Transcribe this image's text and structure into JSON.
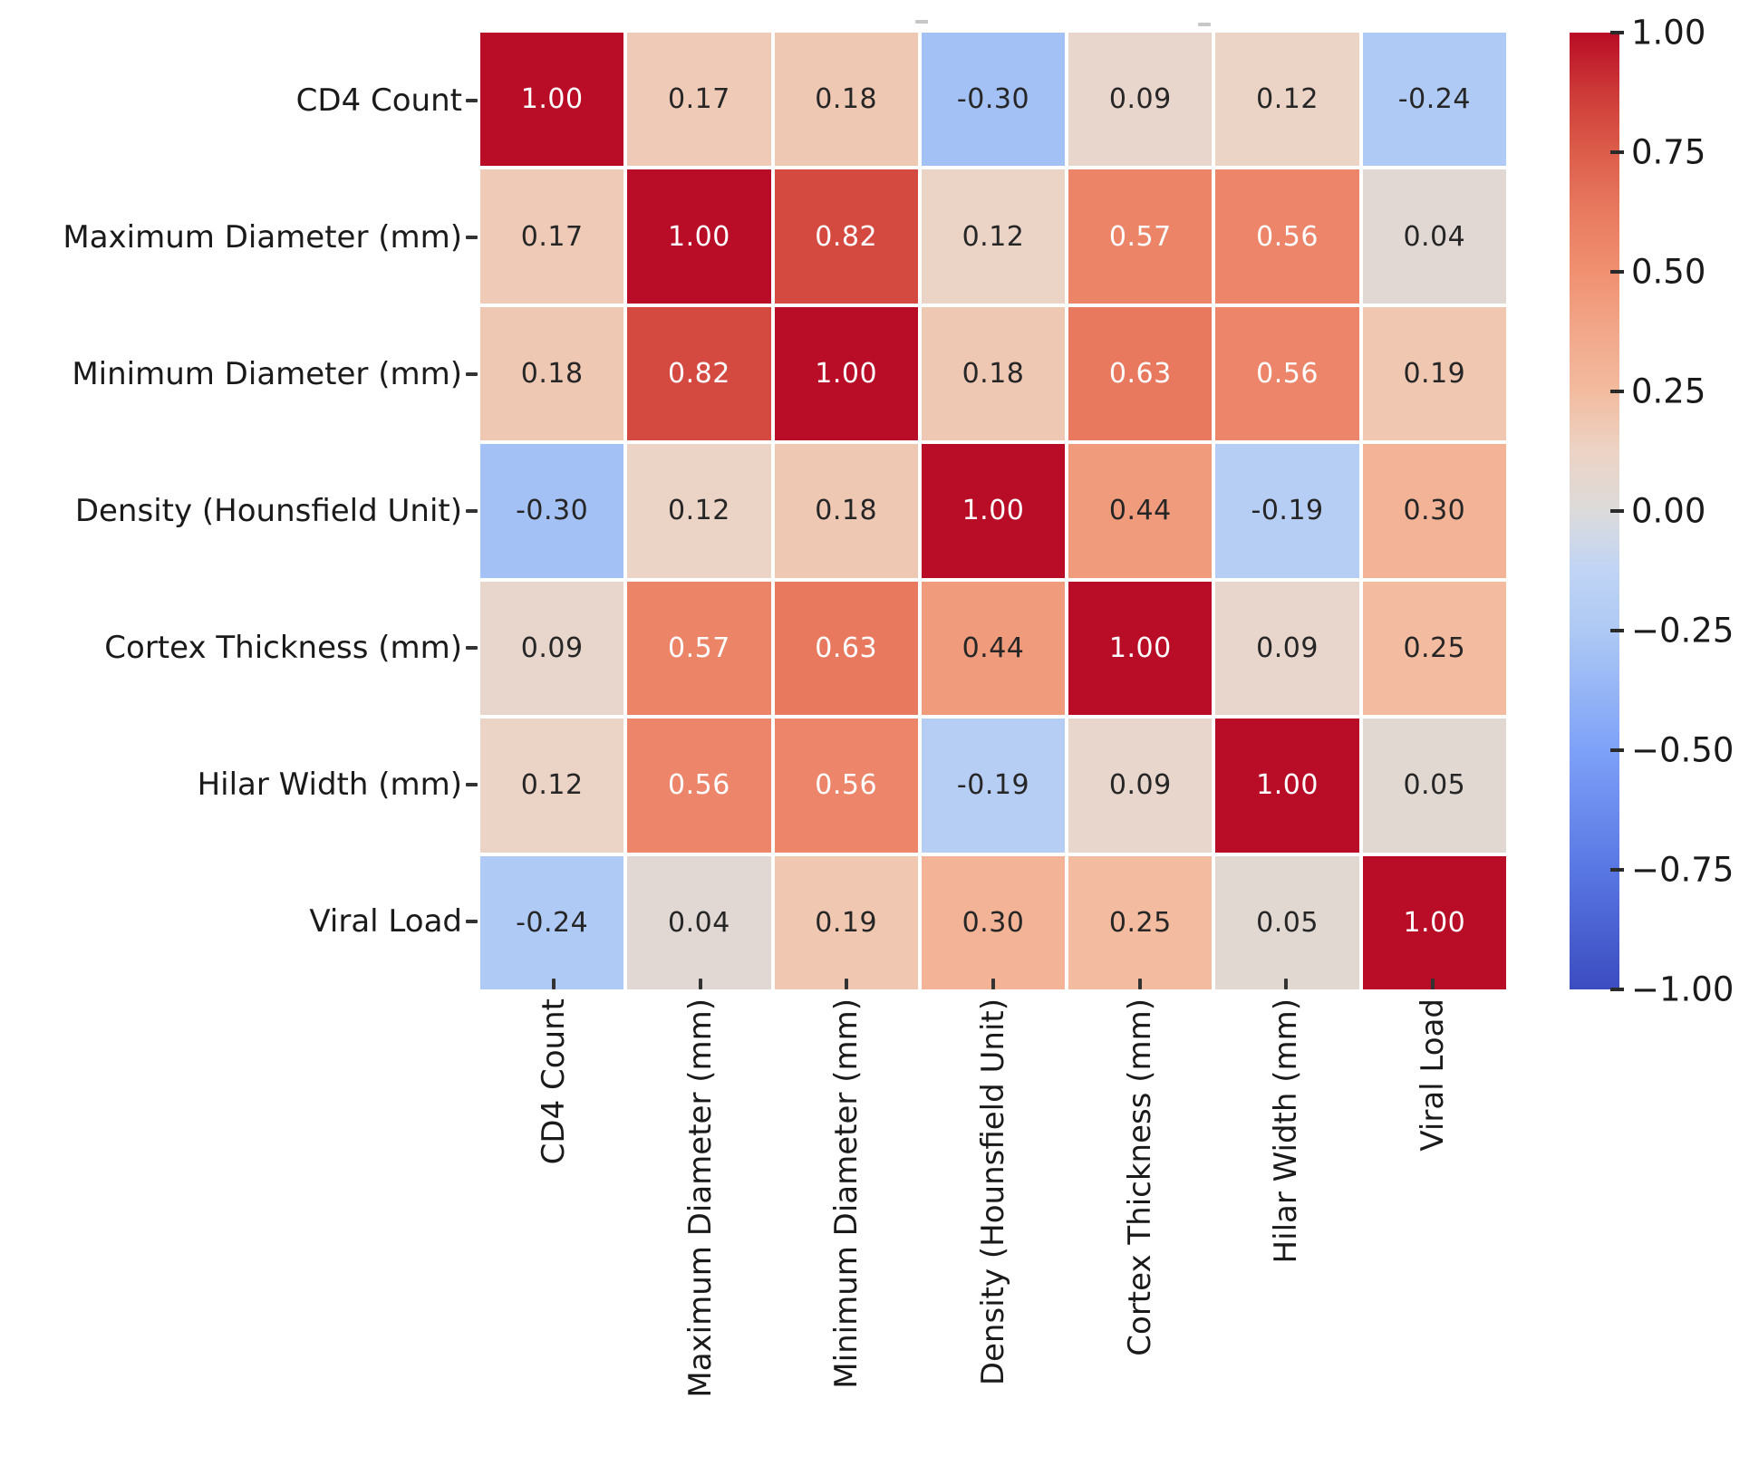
{
  "chart_data": {
    "type": "heatmap",
    "title": "",
    "categories": [
      "CD4 Count",
      "Maximum Diameter (mm)",
      "Minimum Diameter (mm)",
      "Density (Hounsfield Unit)",
      "Cortex Thickness (mm)",
      "Hilar Width (mm)",
      "Viral Load"
    ],
    "matrix": [
      [
        1.0,
        0.17,
        0.18,
        -0.3,
        0.09,
        0.12,
        -0.24
      ],
      [
        0.17,
        1.0,
        0.82,
        0.12,
        0.57,
        0.56,
        0.04
      ],
      [
        0.18,
        0.82,
        1.0,
        0.18,
        0.63,
        0.56,
        0.19
      ],
      [
        -0.3,
        0.12,
        0.18,
        1.0,
        0.44,
        -0.19,
        0.3
      ],
      [
        0.09,
        0.57,
        0.63,
        0.44,
        1.0,
        0.09,
        0.25
      ],
      [
        0.12,
        0.56,
        0.56,
        -0.19,
        0.09,
        1.0,
        0.05
      ],
      [
        -0.24,
        0.04,
        0.19,
        0.3,
        0.25,
        0.05,
        1.0
      ]
    ],
    "value_format_decimals": 2,
    "vmin": -1,
    "vmax": 1,
    "colormap": "coolwarm",
    "grid": true,
    "legend_position": "right-colorbar",
    "colorbar_ticks": [
      {
        "label": "1.00",
        "value": 1.0
      },
      {
        "label": "0.75",
        "value": 0.75
      },
      {
        "label": "0.50",
        "value": 0.5
      },
      {
        "label": "0.25",
        "value": 0.25
      },
      {
        "label": "0.00",
        "value": 0.0
      },
      {
        "label": "−0.25",
        "value": -0.25
      },
      {
        "label": "−0.50",
        "value": -0.5
      },
      {
        "label": "−0.75",
        "value": -0.75
      },
      {
        "label": "−1.00",
        "value": -1.0
      }
    ]
  },
  "colors": {
    "colormap_anchors": [
      [
        0.0,
        "#3b4cc0"
      ],
      [
        0.125,
        "#5977e3"
      ],
      [
        0.25,
        "#7ea1f8"
      ],
      [
        0.375,
        "#aec9f4"
      ],
      [
        0.4375,
        "#c0d4f5"
      ],
      [
        0.5,
        "#dcdbdb"
      ],
      [
        0.5625,
        "#ecd3c5"
      ],
      [
        0.625,
        "#f3bb9f"
      ],
      [
        0.6875,
        "#f2a78a"
      ],
      [
        0.75,
        "#f09071"
      ],
      [
        0.8125,
        "#e87a60"
      ],
      [
        0.875,
        "#dc5d4a"
      ],
      [
        0.9375,
        "#cd3a38"
      ],
      [
        1.0,
        "#b90c26"
      ]
    ],
    "cell_text_light": "#ffffff",
    "cell_text_dark": "#262626",
    "axis_label_color": "#1a1a1a",
    "tick_color": "#333333",
    "gridline_color": "#ffffff"
  }
}
